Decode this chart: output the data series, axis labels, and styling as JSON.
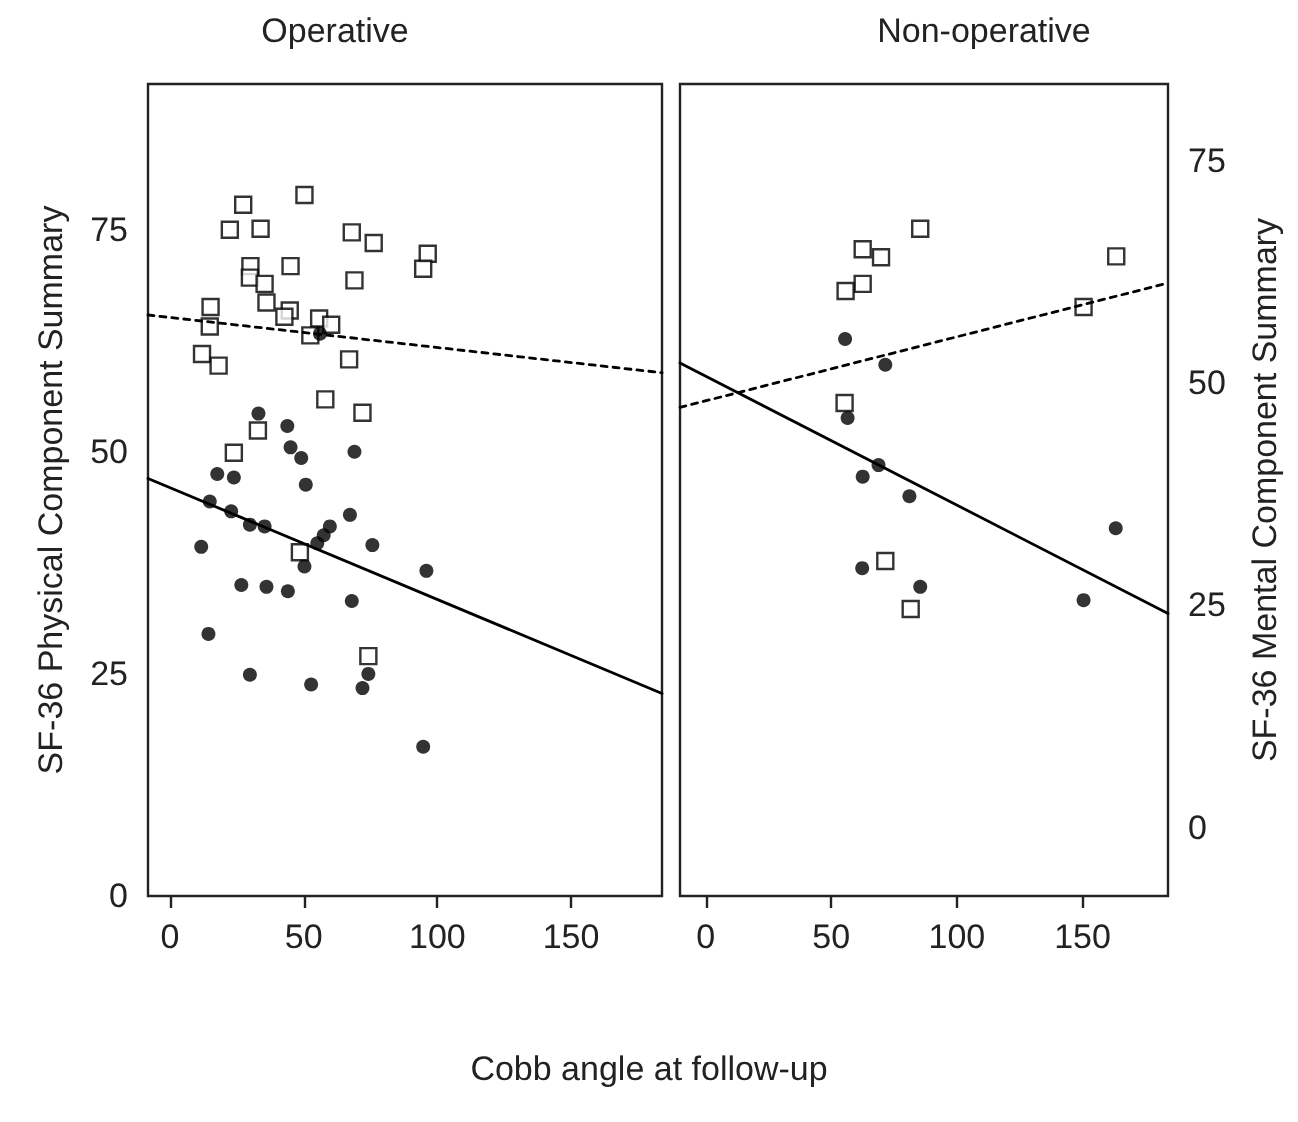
{
  "chart_data": [
    {
      "type": "scatter",
      "title": "Operative",
      "xlabel": "Cobb angle at follow-up",
      "ylabel": "SF-36 Physical Component Summary",
      "xlim": [
        -8.2,
        184
      ],
      "xticks": [
        0,
        50,
        100,
        150
      ],
      "ylim": [
        0,
        91.4
      ],
      "yticks": [
        0,
        25,
        50,
        75
      ],
      "y2lim": [
        -7.7,
        83.7
      ],
      "grid": false,
      "series": [
        {
          "marker": "circle",
          "color": "#000000",
          "x": [
            33.1,
            43.9,
            45.1,
            49.1,
            69.0,
            17.7,
            23.9,
            56.1,
            50.8,
            14.9,
            22.9,
            29.9,
            35.4,
            11.7,
            67.3,
            59.8,
            57.5,
            55.1,
            75.7,
            50.3,
            95.9,
            26.7,
            36.1,
            44.1,
            68.0,
            14.4,
            29.9,
            52.8,
            74.2,
            72.0,
            94.7
          ],
          "values": [
            54.3,
            52.9,
            50.5,
            49.3,
            50.0,
            47.5,
            47.1,
            63.3,
            46.3,
            44.4,
            43.3,
            41.8,
            41.6,
            39.3,
            42.9,
            41.6,
            40.6,
            39.7,
            39.5,
            37.1,
            36.6,
            35.0,
            34.8,
            34.3,
            33.2,
            29.5,
            24.9,
            23.8,
            25.0,
            23.4,
            16.8
          ]
        },
        {
          "marker": "square",
          "axis": "y2",
          "color": "#000000",
          "x": [
            27.4,
            50.3,
            22.4,
            33.9,
            68.0,
            76.2,
            96.4,
            94.7,
            30.1,
            29.9,
            35.4,
            45.1,
            69.0,
            15.2,
            36.1,
            44.8,
            42.8,
            14.9,
            55.8,
            60.3,
            52.5,
            12.0,
            18.2,
            67.0,
            58.1,
            72.0,
            32.9,
            23.9,
            48.6,
            74.2
          ],
          "values": [
            70.1,
            71.2,
            67.3,
            67.4,
            67.0,
            65.8,
            64.6,
            62.9,
            63.2,
            61.9,
            61.2,
            63.2,
            61.6,
            58.6,
            59.1,
            58.2,
            57.5,
            56.4,
            57.3,
            56.6,
            55.4,
            53.3,
            52.0,
            52.7,
            48.2,
            46.7,
            44.7,
            42.2,
            31.0,
            19.3
          ]
        },
        {
          "type": "line",
          "marker": "none",
          "line_style": "solid",
          "color": "#000000",
          "x": [
            -8.2,
            184
          ],
          "values": [
            47.0,
            22.8
          ]
        },
        {
          "type": "line",
          "marker": "none",
          "line_style": "dotted",
          "axis": "y2",
          "color": "#000000",
          "x": [
            -8.2,
            184
          ],
          "values": [
            57.7,
            51.2
          ]
        }
      ]
    },
    {
      "type": "scatter",
      "title": "Non-operative",
      "y2label": "SF-36 Mental Component Summary",
      "xlim": [
        -10.2,
        184
      ],
      "xticks": [
        0,
        50,
        100,
        150
      ],
      "ylim": [
        0,
        91.4
      ],
      "y2lim": [
        -7.7,
        83.7
      ],
      "y2ticks": [
        0,
        25,
        50,
        75
      ],
      "grid": false,
      "series": [
        {
          "marker": "circle",
          "color": "#000000",
          "x": [
            55.5,
            71.5,
            56.5,
            68.8,
            62.5,
            81.1,
            62.3,
            85.4,
            163.2,
            150.4
          ],
          "values": [
            62.7,
            59.8,
            53.8,
            48.5,
            47.2,
            45.0,
            36.9,
            34.8,
            41.4,
            33.3
          ]
        },
        {
          "marker": "square",
          "axis": "y2",
          "color": "#000000",
          "x": [
            85.4,
            62.5,
            69.8,
            62.5,
            55.7,
            163.4,
            150.4,
            55.3,
            71.5,
            81.6
          ],
          "values": [
            67.4,
            65.1,
            64.2,
            61.2,
            60.4,
            64.3,
            58.6,
            47.8,
            30.0,
            24.6
          ]
        },
        {
          "type": "line",
          "marker": "none",
          "line_style": "solid",
          "color": "#000000",
          "x": [
            -10.2,
            184
          ],
          "values": [
            60.0,
            31.8
          ]
        },
        {
          "type": "line",
          "marker": "none",
          "line_style": "dotted",
          "axis": "y2",
          "color": "#000000",
          "x": [
            -10.2,
            184
          ],
          "values": [
            47.3,
            61.3
          ]
        }
      ]
    }
  ]
}
